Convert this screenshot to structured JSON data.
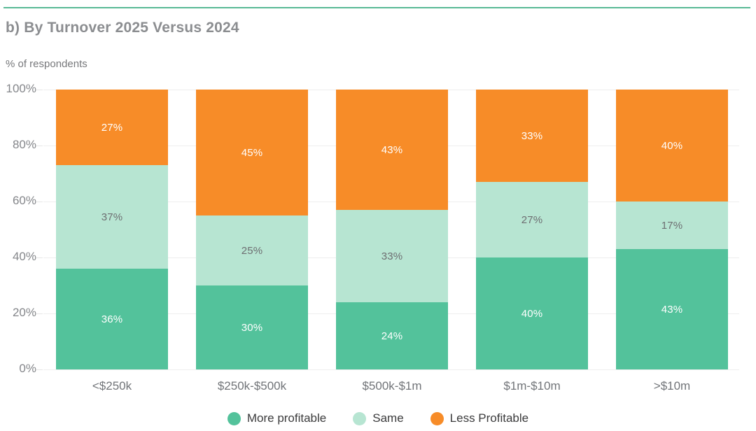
{
  "header": {
    "title": "b) By Turnover 2025 Versus 2024",
    "subtitle": "% of respondents"
  },
  "colors": {
    "accent_rule": "#58b995",
    "more_profitable": "#53c29b",
    "same": "#b7e5d2",
    "less_profitable": "#f78c28",
    "grid": "#eeeeee",
    "axis_text": "#84868a",
    "category_text": "#717478",
    "legend_text": "#3b3b3c"
  },
  "chart_data": {
    "type": "bar",
    "stacked": true,
    "title": "b) By Turnover 2025 Versus 2024",
    "ylabel": "% of respondents",
    "categories": [
      "<$250k",
      "$250k-$500k",
      "$500k-$1m",
      "$1m-$10m",
      ">$10m"
    ],
    "series": [
      {
        "name": "More profitable",
        "color_key": "more_profitable",
        "value_label_color": "#ffffff",
        "values": [
          36,
          30,
          24,
          40,
          43
        ]
      },
      {
        "name": "Same",
        "color_key": "same",
        "value_label_color": "#6d6e71",
        "values": [
          37,
          25,
          33,
          27,
          17
        ]
      },
      {
        "name": "Less Profitable",
        "color_key": "less_profitable",
        "value_label_color": "#ffffff",
        "values": [
          27,
          45,
          43,
          33,
          40
        ]
      }
    ],
    "value_suffix": "%",
    "ylim": [
      0,
      100
    ],
    "yticks": [
      "0%",
      "20%",
      "40%",
      "60%",
      "80%",
      "100%"
    ],
    "grid": true,
    "legend_position": "bottom"
  },
  "legend": {
    "items": [
      {
        "label": "More profitable",
        "color_key": "more_profitable"
      },
      {
        "label": "Same",
        "color_key": "same"
      },
      {
        "label": "Less Profitable",
        "color_key": "less_profitable"
      }
    ]
  }
}
